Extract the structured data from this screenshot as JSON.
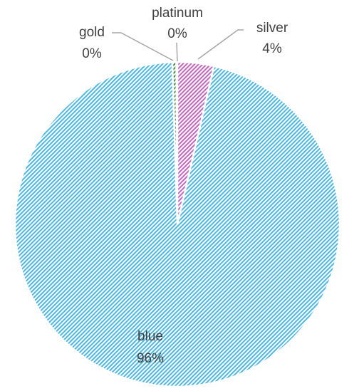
{
  "chart_data": {
    "type": "pie",
    "title": "",
    "slices": [
      {
        "label": "silver",
        "pct_label": "4%",
        "value": 3.6,
        "color": "#c565c0",
        "pattern": "diagonal-hatch"
      },
      {
        "label": "blue",
        "pct_label": "96%",
        "value": 95.4,
        "color": "#4bb8e3",
        "pattern": "diagonal-hatch"
      },
      {
        "label": "gold",
        "pct_label": "0%",
        "value": 0.4,
        "color": "#3f8a3a",
        "pattern": "diagonal-hatch"
      },
      {
        "label": "platinum",
        "pct_label": "0%",
        "value": 0.1,
        "color": "#8a8a8a",
        "pattern": "diagonal-hatch"
      }
    ],
    "start_angle_deg": 0,
    "direction": "clockwise",
    "legend": "none",
    "labels": "outside-with-leader-lines"
  }
}
